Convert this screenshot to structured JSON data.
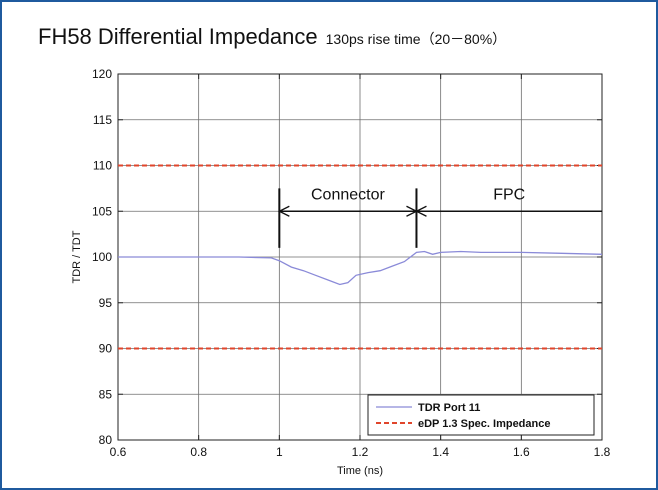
{
  "title": "FH58 Differential Impedance",
  "subtitle": "130ps rise time（20－80%）",
  "chart_data": {
    "type": "line",
    "xlabel": "Time (ns)",
    "ylabel": "TDR / TDT",
    "xlim": [
      0.6,
      1.8
    ],
    "ylim": [
      80,
      120
    ],
    "x_ticks": [
      "0.6",
      "0.8",
      "1",
      "1.2",
      "1.4",
      "1.6",
      "1.8"
    ],
    "y_ticks": [
      "80",
      "85",
      "90",
      "95",
      "100",
      "105",
      "110",
      "115",
      "120"
    ],
    "grid": true,
    "legend_position": "bottom-right",
    "series": [
      {
        "name": "TDR Port 11",
        "color": "#8a8ad8",
        "style": "solid",
        "points": [
          [
            0.6,
            100
          ],
          [
            0.9,
            100
          ],
          [
            0.98,
            99.9
          ],
          [
            1.0,
            99.6
          ],
          [
            1.03,
            98.9
          ],
          [
            1.06,
            98.5
          ],
          [
            1.09,
            98.0
          ],
          [
            1.12,
            97.5
          ],
          [
            1.15,
            97.0
          ],
          [
            1.17,
            97.2
          ],
          [
            1.19,
            98.0
          ],
          [
            1.22,
            98.3
          ],
          [
            1.25,
            98.5
          ],
          [
            1.28,
            99.0
          ],
          [
            1.31,
            99.5
          ],
          [
            1.34,
            100.5
          ],
          [
            1.36,
            100.6
          ],
          [
            1.38,
            100.3
          ],
          [
            1.4,
            100.5
          ],
          [
            1.45,
            100.6
          ],
          [
            1.5,
            100.5
          ],
          [
            1.6,
            100.5
          ],
          [
            1.7,
            100.4
          ],
          [
            1.8,
            100.3
          ]
        ]
      },
      {
        "name": "eDP 1.3 Spec. Impedance",
        "color": "#e0452b",
        "style": "dashed",
        "points": [
          [
            0.6,
            110
          ],
          [
            1.8,
            110
          ]
        ]
      },
      {
        "name": "eDP 1.3 Spec. Impedance",
        "color": "#e0452b",
        "style": "dashed",
        "points": [
          [
            0.6,
            90
          ],
          [
            1.8,
            90
          ]
        ]
      }
    ],
    "annotations": [
      {
        "label": "Connector",
        "x_start": 1.0,
        "x_end": 1.34,
        "y": 105
      },
      {
        "label": "FPC",
        "x_start": 1.34,
        "x_end": 1.8,
        "y": 105
      }
    ],
    "legend": [
      {
        "label": "TDR Port 11",
        "color": "#8a8ad8",
        "style": "solid"
      },
      {
        "label": "eDP 1.3 Spec. Impedance",
        "color": "#e0452b",
        "style": "dashed"
      }
    ]
  }
}
